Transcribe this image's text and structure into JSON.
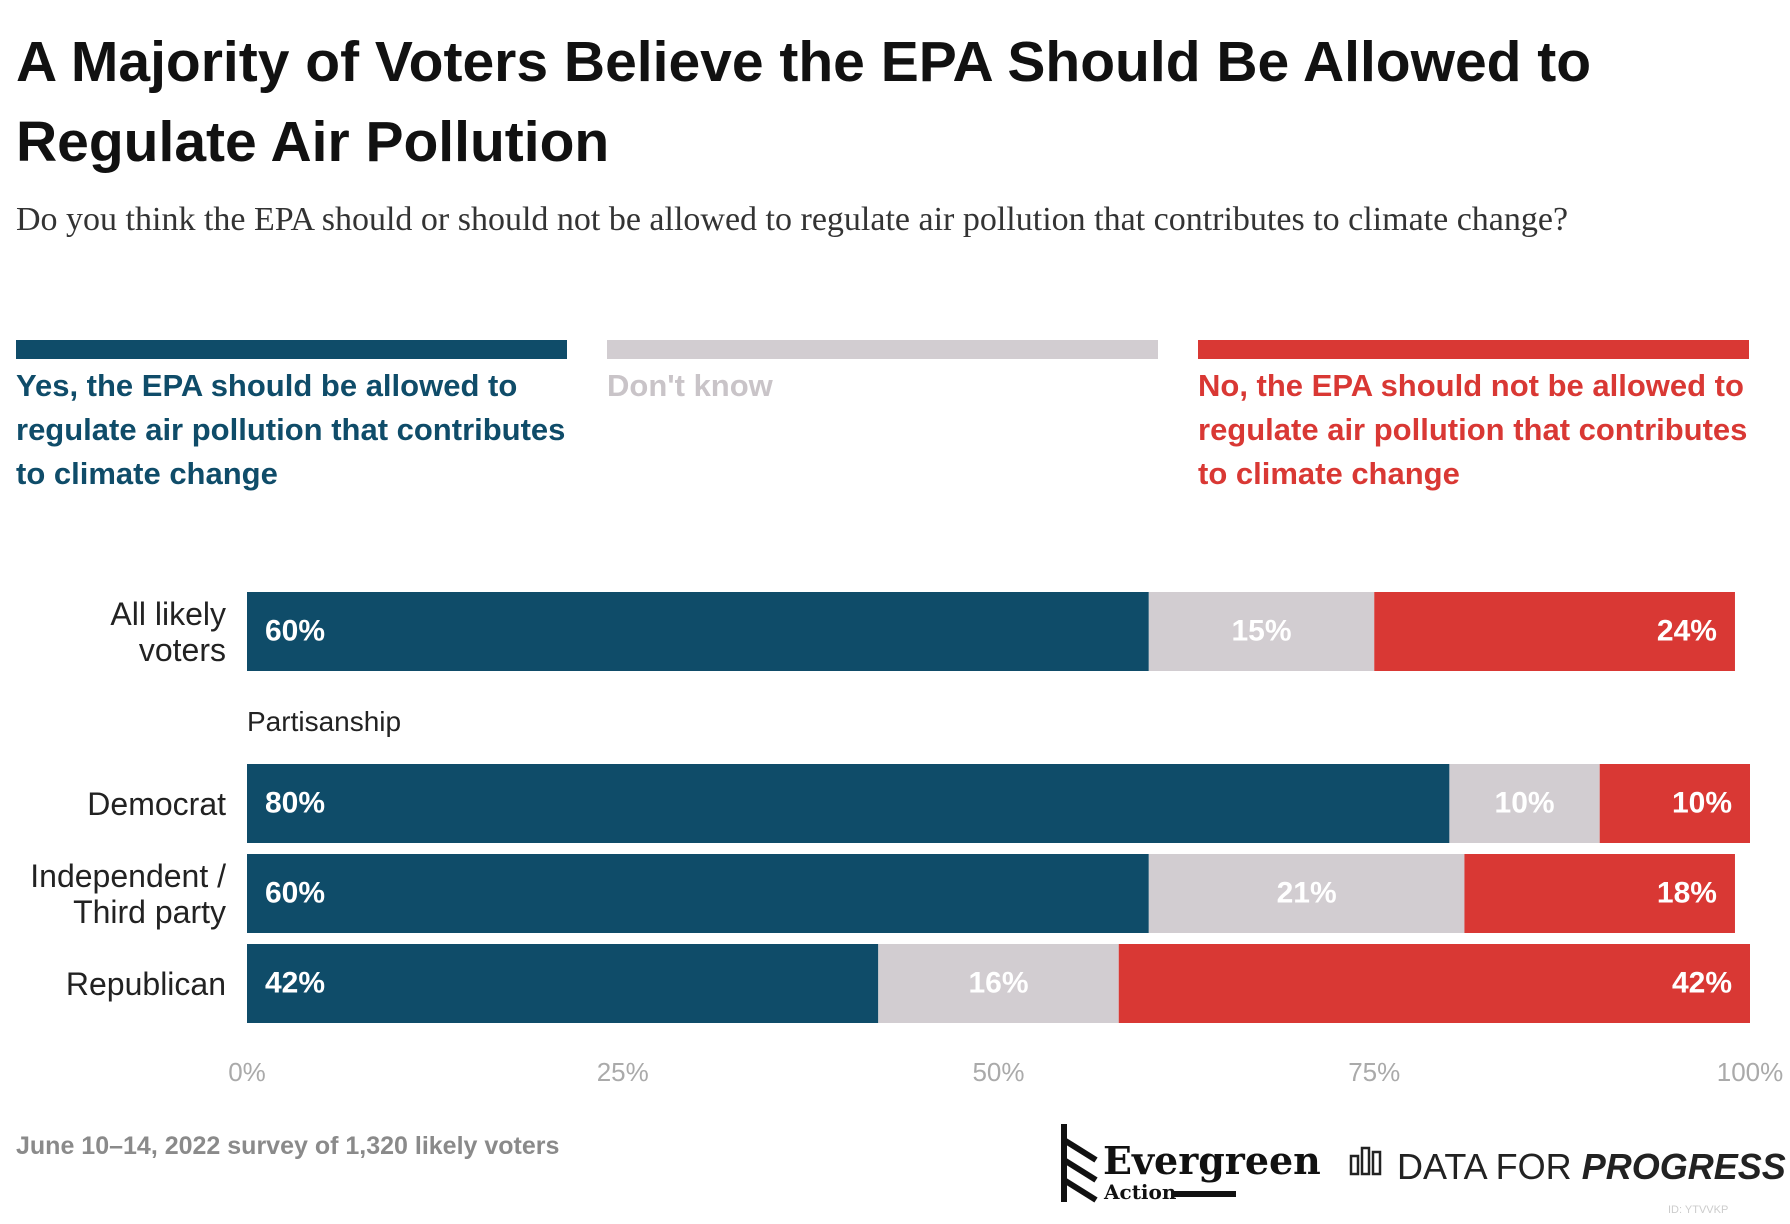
{
  "chart_data": {
    "type": "stacked-bar",
    "orientation": "horizontal",
    "title": "A Majority of Voters Believe the EPA Should Be Allowed to Regulate Air Pollution",
    "subtitle": "Do you think the EPA should or should not be allowed to regulate air pollution that contributes to climate change?",
    "categories": [
      "All likely voters",
      "Democrat",
      "Independent / Third party",
      "Republican"
    ],
    "group_label": "Partisanship",
    "series": [
      {
        "name": "Yes, the EPA should be allowed to regulate air pollution that contributes to climate change",
        "color": "#0f4c69",
        "label_color": "#0f4c69",
        "values": [
          60,
          80,
          60,
          42
        ],
        "value_labels": [
          "60%",
          "80%",
          "60%",
          "42%"
        ]
      },
      {
        "name": "Don't know",
        "color": "#d2cdd1",
        "label_color": "#c9c4c8",
        "values": [
          15,
          10,
          21,
          16
        ],
        "value_labels": [
          "15%",
          "10%",
          "21%",
          "16%"
        ]
      },
      {
        "name": "No, the EPA should not be allowed to regulate air pollution that contributes to climate change",
        "color": "#d93834",
        "label_color": "#d93834",
        "values": [
          24,
          10,
          18,
          42
        ],
        "value_labels": [
          "24%",
          "10%",
          "18%",
          "42%"
        ]
      }
    ],
    "xlim": [
      0,
      100
    ],
    "xticks": [
      {
        "value": 0,
        "label": "0%"
      },
      {
        "value": 25,
        "label": "25%"
      },
      {
        "value": 50,
        "label": "50%"
      },
      {
        "value": 75,
        "label": "75%"
      },
      {
        "value": 100,
        "label": "100%"
      }
    ],
    "grid": false,
    "note": "June 10–14, 2022 survey of 1,320 likely voters",
    "logo_texts": [
      "Evergreen",
      "Action",
      "DATA FOR",
      "PROGRESS"
    ],
    "id_label": "ID: YTVVKP"
  }
}
